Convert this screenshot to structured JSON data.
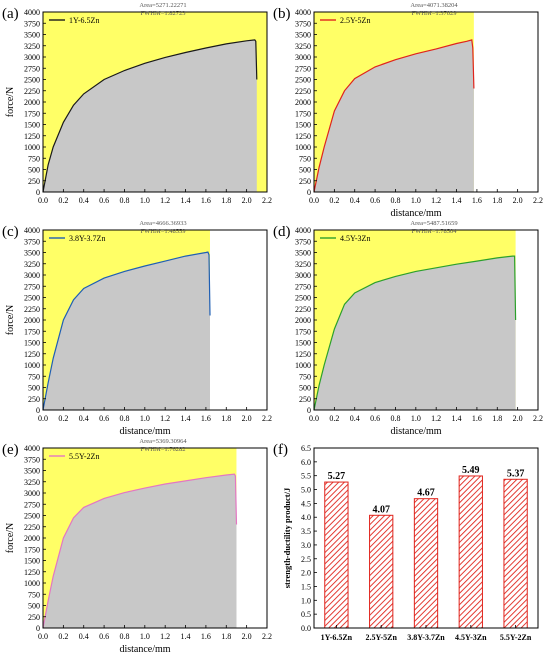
{
  "chart_data": [
    {
      "panel_label": "(a)",
      "type": "area",
      "xlabel": "",
      "ylabel": "force/N",
      "xlim": [
        0,
        2.2
      ],
      "ylim": [
        0,
        4000
      ],
      "xticks": [
        "0.0",
        "0.2",
        "0.4",
        "0.6",
        "0.8",
        "1.0",
        "1.2",
        "1.4",
        "1.6",
        "1.8",
        "2.0",
        "2.2"
      ],
      "yticks": [
        "0",
        "250",
        "500",
        "750",
        "1000",
        "1250",
        "1500",
        "1750",
        "2000",
        "2250",
        "2500",
        "2750",
        "3000",
        "3250",
        "3500",
        "3750",
        "4000"
      ],
      "series": [
        {
          "name": "1Y-6.5Zn",
          "color": "#1a1a1a",
          "x": [
            0,
            0.05,
            0.1,
            0.2,
            0.3,
            0.4,
            0.6,
            0.8,
            1.0,
            1.2,
            1.4,
            1.6,
            1.8,
            2.0,
            2.08,
            2.09,
            2.1
          ],
          "y": [
            0,
            600,
            1000,
            1550,
            1930,
            2180,
            2500,
            2700,
            2860,
            2990,
            3100,
            3200,
            3290,
            3360,
            3380,
            3350,
            2500
          ]
        }
      ],
      "annotations": [
        "Area=5271.22271",
        "FWHM=1.82723"
      ],
      "fill_end": 2.1,
      "plot_end": 2.2
    },
    {
      "panel_label": "(b)",
      "type": "area",
      "xlabel": "distance/mm",
      "ylabel": "",
      "xlim": [
        0,
        2.2
      ],
      "ylim": [
        0,
        4000
      ],
      "xticks": [
        "0.0",
        "0.2",
        "0.4",
        "0.6",
        "0.8",
        "1.0",
        "1.2",
        "1.4",
        "1.6",
        "1.8",
        "2.0",
        "2.2"
      ],
      "yticks": [
        "0",
        "250",
        "500",
        "750",
        "1000",
        "1250",
        "1500",
        "1750",
        "2000",
        "2250",
        "2500",
        "2750",
        "3000",
        "3250",
        "3500",
        "3750",
        "4000"
      ],
      "series": [
        {
          "name": "2.5Y-5Zn",
          "color": "#e0241c",
          "x": [
            0,
            0.05,
            0.1,
            0.2,
            0.3,
            0.4,
            0.6,
            0.8,
            1.0,
            1.2,
            1.4,
            1.5,
            1.55,
            1.56,
            1.57
          ],
          "y": [
            0,
            550,
            1000,
            1800,
            2250,
            2520,
            2780,
            2940,
            3070,
            3180,
            3300,
            3350,
            3380,
            3200,
            2300
          ]
        }
      ],
      "annotations": [
        "Area=4071.38204",
        "FWHM=1.37029"
      ],
      "fill_end": 1.57,
      "plot_end": 1.57
    },
    {
      "panel_label": "(c)",
      "type": "area",
      "xlabel": "distance/mm",
      "ylabel": "force/N",
      "xlim": [
        0,
        2.2
      ],
      "ylim": [
        0,
        4000
      ],
      "xticks": [
        "0.0",
        "0.2",
        "0.4",
        "0.6",
        "0.8",
        "1.0",
        "1.2",
        "1.4",
        "1.6",
        "1.8",
        "2.0",
        "2.2"
      ],
      "yticks": [
        "0",
        "250",
        "500",
        "750",
        "1000",
        "1250",
        "1500",
        "1750",
        "2000",
        "2250",
        "2500",
        "2750",
        "3000",
        "3250",
        "3500",
        "3750",
        "4000"
      ],
      "series": [
        {
          "name": "3.8Y-3.7Zn",
          "color": "#1f5fb4",
          "x": [
            0,
            0.05,
            0.1,
            0.2,
            0.3,
            0.4,
            0.6,
            0.8,
            1.0,
            1.2,
            1.4,
            1.6,
            1.62,
            1.63,
            1.64
          ],
          "y": [
            0,
            600,
            1150,
            2000,
            2450,
            2700,
            2930,
            3080,
            3200,
            3310,
            3420,
            3500,
            3510,
            3450,
            2100
          ]
        }
      ],
      "annotations": [
        "Area=4666.36933",
        "FWHM=1.48559"
      ],
      "fill_end": 1.64,
      "plot_end": 1.64
    },
    {
      "panel_label": "(d)",
      "type": "area",
      "xlabel": "distance/mm",
      "ylabel": "",
      "xlim": [
        0,
        2.2
      ],
      "ylim": [
        0,
        4000
      ],
      "xticks": [
        "0.0",
        "0.2",
        "0.4",
        "0.6",
        "0.8",
        "1.0",
        "1.2",
        "1.4",
        "1.6",
        "1.8",
        "2.0",
        "2.2"
      ],
      "yticks": [
        "0",
        "250",
        "500",
        "750",
        "1000",
        "1250",
        "1500",
        "1750",
        "2000",
        "2250",
        "2500",
        "2750",
        "3000",
        "3250",
        "3500",
        "3750",
        "4000"
      ],
      "series": [
        {
          "name": "4.5Y-3Zn",
          "color": "#2ca02c",
          "x": [
            0,
            0.05,
            0.1,
            0.2,
            0.3,
            0.4,
            0.6,
            0.8,
            1.0,
            1.2,
            1.4,
            1.6,
            1.8,
            1.95,
            1.97,
            1.98
          ],
          "y": [
            0,
            550,
            1000,
            1800,
            2350,
            2600,
            2830,
            2970,
            3080,
            3160,
            3240,
            3310,
            3380,
            3420,
            3420,
            2000
          ]
        }
      ],
      "annotations": [
        "Area=5487.51659",
        "FWHM=1.78504"
      ],
      "fill_end": 1.98,
      "plot_end": 1.98
    },
    {
      "panel_label": "(e)",
      "type": "area",
      "xlabel": "distance/mm",
      "ylabel": "force/N",
      "xlim": [
        0,
        2.2
      ],
      "ylim": [
        0,
        4000
      ],
      "xticks": [
        "0.0",
        "0.2",
        "0.4",
        "0.6",
        "0.8",
        "1.0",
        "1.2",
        "1.4",
        "1.6",
        "1.8",
        "2.0",
        "2.2"
      ],
      "yticks": [
        "0",
        "250",
        "500",
        "750",
        "1000",
        "1250",
        "1500",
        "1750",
        "2000",
        "2250",
        "2500",
        "2750",
        "3000",
        "3250",
        "3500",
        "3750",
        "4000"
      ],
      "series": [
        {
          "name": "5.5Y-2Zn",
          "color": "#e377c2",
          "x": [
            0,
            0.05,
            0.1,
            0.2,
            0.3,
            0.4,
            0.6,
            0.8,
            1.0,
            1.2,
            1.4,
            1.6,
            1.8,
            1.88,
            1.89,
            1.9
          ],
          "y": [
            0,
            600,
            1150,
            2000,
            2450,
            2680,
            2880,
            3010,
            3110,
            3200,
            3270,
            3340,
            3400,
            3420,
            3380,
            2300
          ]
        }
      ],
      "annotations": [
        "Area=5369.30964",
        "FWHM=1.76282"
      ],
      "fill_end": 1.9,
      "plot_end": 1.9
    },
    {
      "panel_label": "(f)",
      "type": "bar",
      "xlabel": "",
      "ylabel": "strength-ductility product/J",
      "categories": [
        "1Y-6.5Zn",
        "2.5Y-5Zn",
        "3.8Y-3.7Zn",
        "4.5Y-3Zn",
        "5.5Y-2Zn"
      ],
      "values": [
        5.27,
        4.07,
        4.67,
        5.49,
        5.37
      ],
      "data_labels": [
        "5.27",
        "4.07",
        "4.67",
        "5.49",
        "5.37"
      ],
      "ylim": [
        0,
        6.5
      ],
      "yticks": [
        "0.0",
        "0.5",
        "1.0",
        "1.5",
        "2.0",
        "2.5",
        "3.0",
        "3.5",
        "4.0",
        "4.5",
        "5.0",
        "5.5",
        "6.0",
        "6.5"
      ],
      "bar_color": "#e0241c"
    }
  ],
  "colors": {
    "plot_bg": "#ffff66",
    "fill": "#c8c8c8",
    "bar": "#e0241c"
  }
}
